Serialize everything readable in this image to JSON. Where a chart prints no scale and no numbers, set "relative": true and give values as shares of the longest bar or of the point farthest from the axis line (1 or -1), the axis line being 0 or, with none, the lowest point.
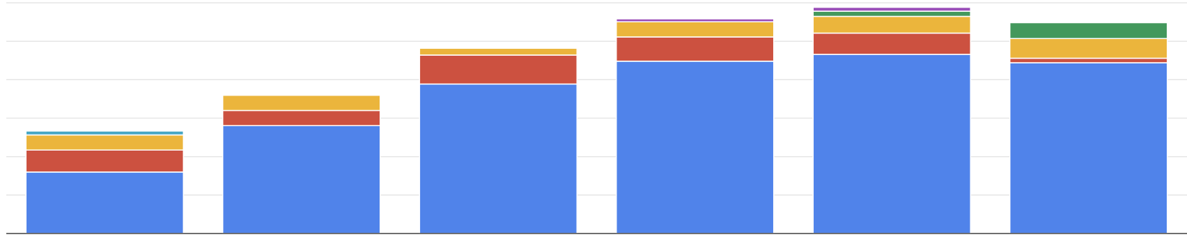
{
  "chart_data": {
    "type": "bar",
    "stacked": true,
    "relative": true,
    "grid": true,
    "categories": [
      null,
      null,
      null,
      null,
      null,
      null
    ],
    "series": [
      {
        "color": "#5083ea",
        "values": [
          0.272,
          0.477,
          0.661,
          0.762,
          0.792,
          0.755
        ]
      },
      {
        "color": "#cc5140",
        "values": [
          0.097,
          0.067,
          0.128,
          0.107,
          0.094,
          0.02
        ]
      },
      {
        "color": "#ebb53c",
        "values": [
          0.067,
          0.067,
          0.03,
          0.067,
          0.074,
          0.087
        ]
      },
      {
        "color": "#46a6c4",
        "values": [
          0.017,
          null,
          null,
          null,
          null,
          null
        ]
      },
      {
        "color": "#43985c",
        "values": [
          null,
          null,
          null,
          null,
          0.023,
          0.07
        ]
      },
      {
        "color": "#9a4fb9",
        "values": [
          null,
          null,
          null,
          0.013,
          0.017,
          null
        ]
      }
    ]
  }
}
